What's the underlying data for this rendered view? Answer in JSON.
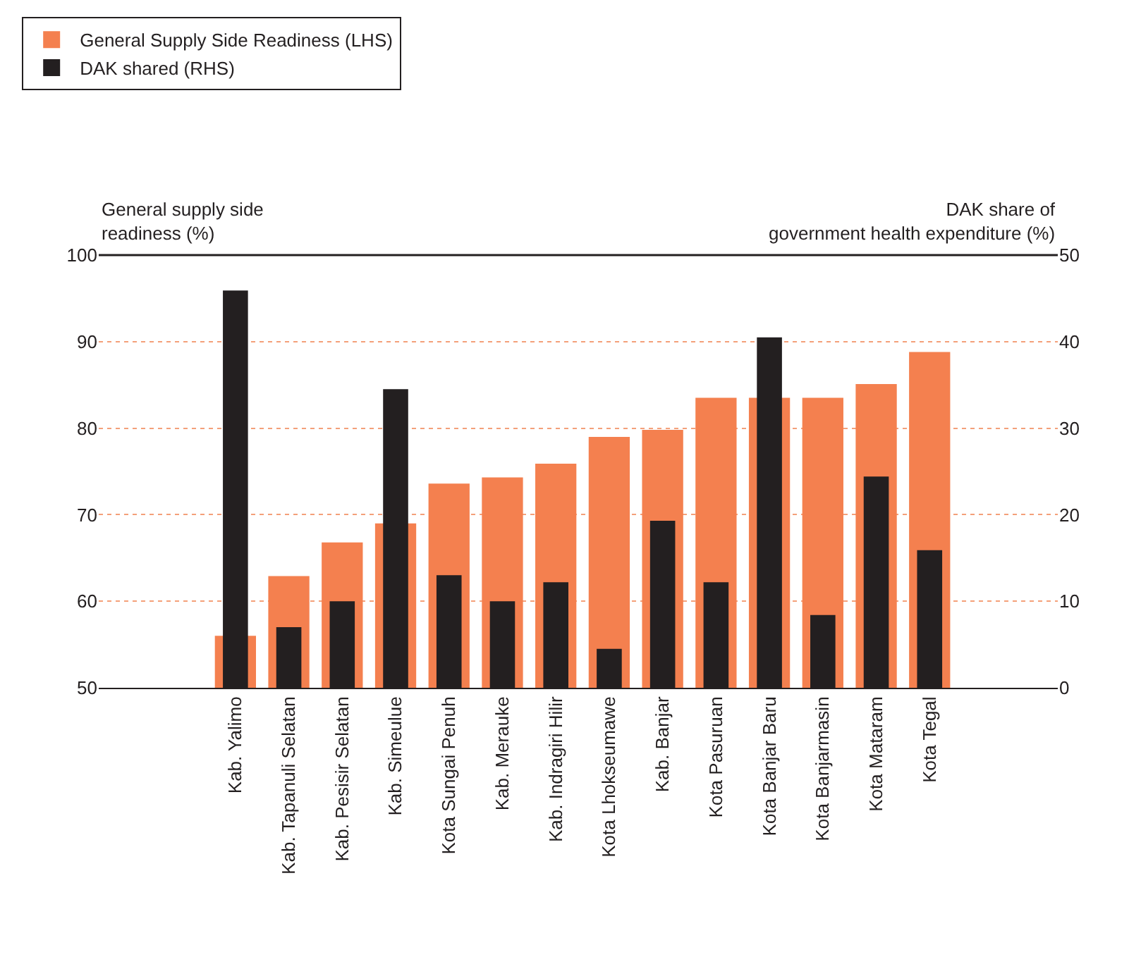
{
  "chart_data": {
    "type": "bar",
    "ylabel": "General supply side\nreadiness (%)",
    "y2label": "DAK share of\ngovernment health expenditure (%)",
    "categories": [
      "Kab. Yalimo",
      "Kab. Tapanuli Selatan",
      "Kab. Pesisir Selatan",
      "Kab. Simeulue",
      "Kota Sungai Penuh",
      "Kab. Merauke",
      "Kab. Indragiri Hilir",
      "Kota Lhokseumawe",
      "Kab. Banjar",
      "Kota Pasuruan",
      "Kota Banjar Baru",
      "Kota Banjarmasin",
      "Kota Mataram",
      "Kota Tegal"
    ],
    "series": [
      {
        "name": "General Supply Side Readiness (LHS)",
        "color": "#f4804f",
        "values": [
          56.0,
          62.9,
          66.8,
          69.0,
          73.6,
          74.3,
          75.9,
          79.0,
          79.8,
          83.5,
          83.5,
          83.5,
          85.1,
          88.8
        ]
      },
      {
        "name": "DAK shared (RHS)",
        "color": "#231f20",
        "axis": "y2",
        "values": [
          45.9,
          7.0,
          10.0,
          34.5,
          13.0,
          10.0,
          12.2,
          4.5,
          19.3,
          12.2,
          40.5,
          8.4,
          24.4,
          15.9
        ]
      }
    ],
    "ylim": [
      50,
      100
    ],
    "yticks": [
      50,
      60,
      70,
      80,
      90,
      100
    ],
    "y2lim": [
      0,
      50
    ],
    "y2ticks": [
      0,
      10,
      20,
      30,
      40,
      50
    ],
    "grid": "y",
    "legend": "top left"
  }
}
